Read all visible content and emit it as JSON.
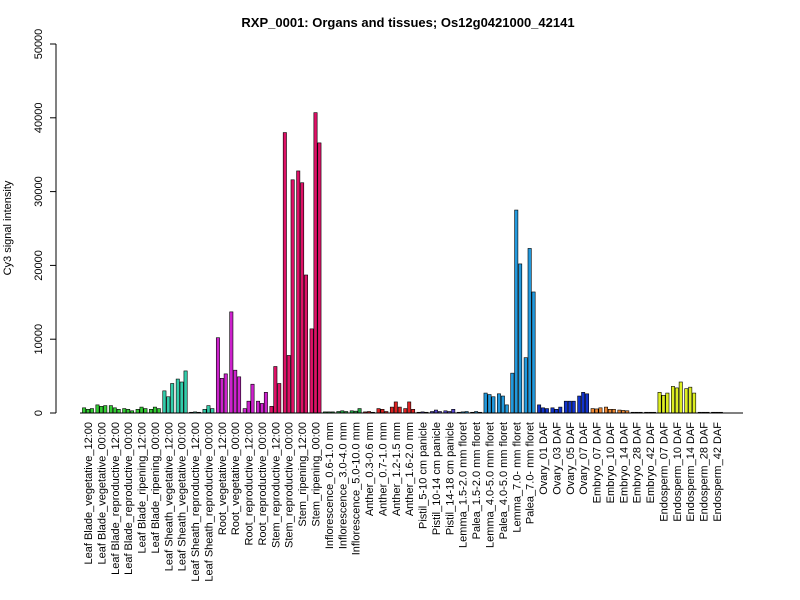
{
  "chart_data": {
    "type": "bar",
    "title": "RXP_0001: Organs and tissues; Os12g0421000_42141",
    "xlabel": "",
    "ylabel": "Cy3 signal intensity",
    "ylim": [
      0,
      50000
    ],
    "yticks": [
      0,
      10000,
      20000,
      30000,
      40000,
      50000
    ],
    "grid": false,
    "legend": "none",
    "categories": [
      "Leaf Blade_vegetative_12:00",
      "Leaf Blade_vegetative_00:00",
      "Leaf Blade_reproductive_12:00",
      "Leaf Blade_reproductive_00:00",
      "Leaf Blade_ripening_12:00",
      "Leaf Blade_ripening_00:00",
      "Leaf Sheath_vegetative_12:00",
      "Leaf Sheath_vegetative_00:00",
      "Leaf Sheath_reproductive_12:00",
      "Leaf Sheath_reproductive_00:00",
      "Root_vegetative_12:00",
      "Root_vegetative_00:00",
      "Root_reproductive_12:00",
      "Root_reproductive_00:00",
      "Stem_reproductive_12:00",
      "Stem_reproductive_00:00",
      "Stem_ripening_12:00",
      "Stem_ripening_00:00",
      "Inflorescence_0.6-1.0 mm",
      "Inflorescence_3.0-4.0 mm",
      "Inflorescence_5.0-10.0 mm",
      "Anther_0.3-0.6 mm",
      "Anther_0.7-1.0 mm",
      "Anther_1.2-1.5 mm",
      "Anther_1.6-2.0 mm",
      "Pistil_5-10 cm panicle",
      "Pistil_10-14 cm panicle",
      "Pistil_14-18 cm panicle",
      "Lemma_1.5-2.0 mm floret",
      "Palea_1.5-2.0 mm floret",
      "Lemma_4.0-5.0 mm floret",
      "Palea_4.0-5.0 mm floret",
      "Lemma_7.0- mm floret",
      "Palea_7.0- mm floret",
      "Ovary_01 DAF",
      "Ovary_03 DAF",
      "Ovary_05 DAF",
      "Ovary_07 DAF",
      "Embryo_07 DAF",
      "Embryo_10 DAF",
      "Embryo_14 DAF",
      "Embryo_28 DAF",
      "Embryo_42 DAF",
      "Endosperm_07 DAF",
      "Endosperm_10 DAF",
      "Endosperm_14 DAF",
      "Endosperm_28 DAF",
      "Endosperm_42 DAF"
    ],
    "group_colors": [
      "#33cc33",
      "#33cc33",
      "#33cc33",
      "#33cc33",
      "#33cc33",
      "#33cc33",
      "#33ccaa",
      "#33ccaa",
      "#33ccaa",
      "#33ccaa",
      "#cc22cc",
      "#cc22cc",
      "#cc22cc",
      "#cc22cc",
      "#dd1166",
      "#dd1166",
      "#dd1166",
      "#dd1166",
      "#22aa44",
      "#22aa44",
      "#22aa44",
      "#dd2222",
      "#dd2222",
      "#dd2222",
      "#dd2222",
      "#5544cc",
      "#5544cc",
      "#5544cc",
      "#2299dd",
      "#2299dd",
      "#2299dd",
      "#2299dd",
      "#2299dd",
      "#2299dd",
      "#1133cc",
      "#1133cc",
      "#1133cc",
      "#1133cc",
      "#ee8833",
      "#ee8833",
      "#ee8833",
      "#ee8833",
      "#ee8833",
      "#ddee22",
      "#ddee22",
      "#ddee22",
      "#ddee22",
      "#ddee22"
    ],
    "values": [
      [
        700,
        500,
        600
      ],
      [
        1100,
        900,
        1000
      ],
      [
        1000,
        700,
        500
      ],
      [
        600,
        500,
        300
      ],
      [
        500,
        800,
        600
      ],
      [
        500,
        800,
        600
      ],
      [
        3000,
        2200,
        4000
      ],
      [
        4600,
        4200,
        5700
      ],
      [
        100,
        150,
        100
      ],
      [
        500,
        1000,
        600
      ],
      [
        10200,
        4700,
        5300
      ],
      [
        13700,
        5800,
        4900
      ],
      [
        600,
        1600,
        3900
      ],
      [
        1600,
        1300,
        2800
      ],
      [
        900,
        6300,
        4000
      ],
      [
        38000,
        7800,
        31600
      ],
      [
        32800,
        31200,
        18700
      ],
      [
        11400,
        40700,
        36600
      ],
      [
        150,
        150,
        150
      ],
      [
        200,
        300,
        200
      ],
      [
        300,
        250,
        600
      ],
      [
        150,
        200,
        100
      ],
      [
        600,
        500,
        200
      ],
      [
        800,
        1500,
        800
      ],
      [
        600,
        1500,
        500
      ],
      [
        100,
        150,
        100
      ],
      [
        200,
        400,
        200
      ],
      [
        300,
        200,
        500
      ],
      [
        100,
        150,
        200
      ],
      [
        100,
        200,
        100
      ],
      [
        2700,
        2500,
        2200
      ],
      [
        2600,
        2300,
        1100
      ],
      [
        5400,
        27500,
        20200
      ],
      [
        7500,
        22300,
        16400
      ],
      [
        1100,
        700,
        600
      ],
      [
        700,
        500,
        800
      ],
      [
        1600,
        1600,
        1600
      ],
      [
        2300,
        2800,
        2600
      ],
      [
        600,
        550,
        700
      ],
      [
        800,
        500,
        500
      ],
      [
        400,
        350,
        300
      ],
      [
        100,
        100,
        100
      ],
      [
        100,
        100,
        100
      ],
      [
        2800,
        2400,
        2700
      ],
      [
        3600,
        3400,
        4200
      ],
      [
        3300,
        3500,
        2700
      ],
      [
        100,
        100,
        100
      ],
      [
        100,
        100,
        100
      ]
    ]
  }
}
